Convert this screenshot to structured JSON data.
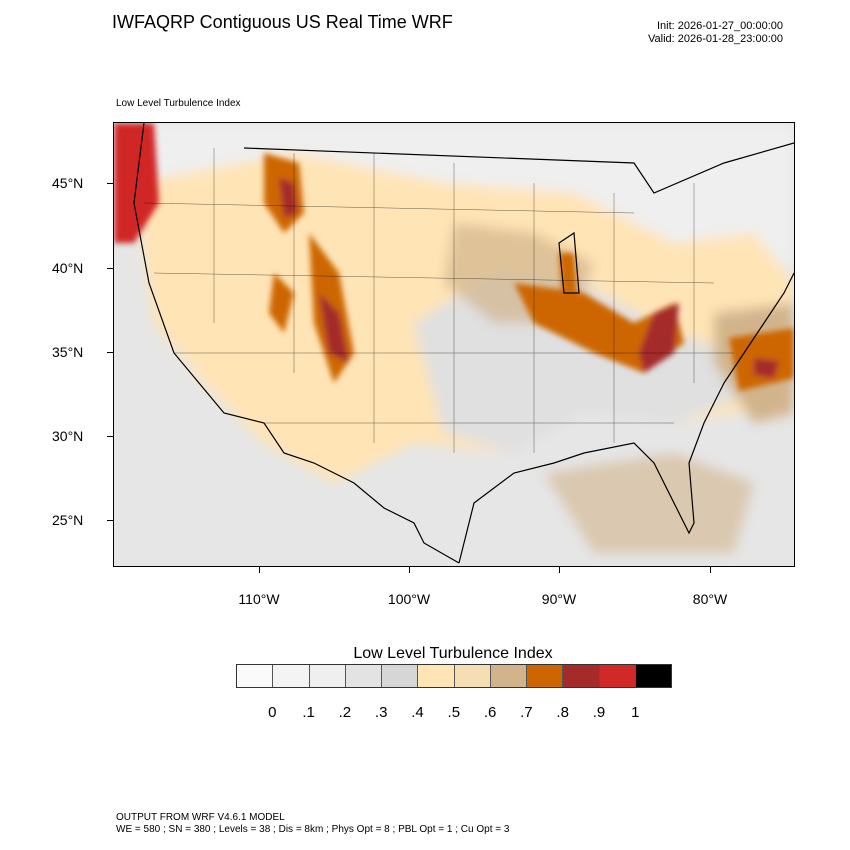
{
  "header": {
    "title": "IWFAQRP Contiguous US Real Time WRF",
    "init": "Init: 2026-01-27_00:00:00",
    "valid": "Valid: 2026-01-28_23:00:00"
  },
  "map": {
    "subtitle": "Low Level Turbulence Index",
    "lat_labels": [
      "45°N",
      "40°N",
      "35°N",
      "30°N",
      "25°N"
    ],
    "lon_labels": [
      "110°W",
      "100°W",
      "90°W",
      "80°W"
    ]
  },
  "colorbar": {
    "title": "Low Level Turbulence Index",
    "colors": [
      "#fafafa",
      "#f4f4f4",
      "#efefef",
      "#e3e3e3",
      "#d6d6d6",
      "#ffe4b5",
      "#f5deb3",
      "#d2b48c",
      "#cd6600",
      "#a52a2a",
      "#d12828",
      "#000000"
    ],
    "labels": [
      "0",
      ".1",
      ".2",
      ".3",
      ".4",
      ".5",
      ".6",
      ".7",
      ".8",
      ".9",
      "1"
    ]
  },
  "footer": {
    "line1": "OUTPUT FROM WRF V4.6.1 MODEL",
    "line2": "WE = 580 ; SN = 380 ; Levels = 38 ; Dis = 8km ; Phys Opt = 8 ; PBL Opt = 1 ; Cu Opt = 3"
  }
}
